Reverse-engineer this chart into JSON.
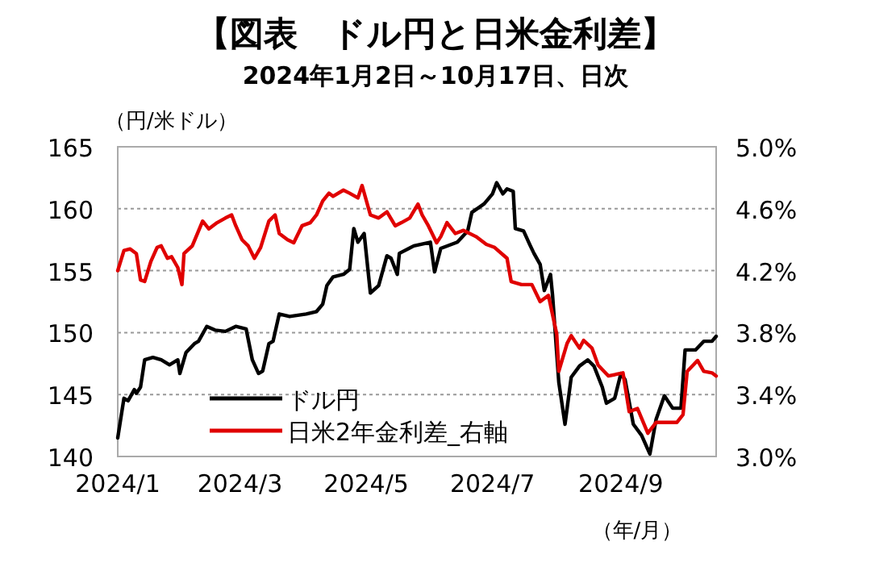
{
  "chart_data": {
    "type": "line",
    "title": "【図表　ドル円と日米金利差】",
    "subtitle": "2024年1月2日～10月17日、日次",
    "ylabel": "（円/米ドル）",
    "xlabel": "（年/月）",
    "xlim": [
      "2024-01-02",
      "2024-10-17"
    ],
    "xticks": [
      {
        "value": "2024-01-02",
        "label": "2024/1"
      },
      {
        "value": "2024-03-01",
        "label": "2024/3"
      },
      {
        "value": "2024-05-01",
        "label": "2024/5"
      },
      {
        "value": "2024-07-01",
        "label": "2024/7"
      },
      {
        "value": "2024-09-01",
        "label": "2024/9"
      }
    ],
    "ylim": [
      140,
      165
    ],
    "yticks": [
      140,
      145,
      150,
      155,
      160,
      165
    ],
    "y2lim": [
      3.0,
      5.0
    ],
    "y2ticks": [
      {
        "value": 3.0,
        "label": "3.0%"
      },
      {
        "value": 3.4,
        "label": "3.4%"
      },
      {
        "value": 3.8,
        "label": "3.8%"
      },
      {
        "value": 4.2,
        "label": "4.2%"
      },
      {
        "value": 4.6,
        "label": "4.6%"
      },
      {
        "value": 5.0,
        "label": "5.0%"
      }
    ],
    "grid": "y",
    "legend": "bottom",
    "line_style": "solid",
    "series": [
      {
        "name": "ドル円",
        "color": "#000000",
        "x": [
          "2024-01-02",
          "2024-01-05",
          "2024-01-07",
          "2024-01-10",
          "2024-01-11",
          "2024-01-13",
          "2024-01-15",
          "2024-01-19",
          "2024-01-23",
          "2024-01-27",
          "2024-01-31",
          "2024-02-01",
          "2024-02-04",
          "2024-02-08",
          "2024-02-10",
          "2024-02-14",
          "2024-02-18",
          "2024-02-23",
          "2024-02-28",
          "2024-03-04",
          "2024-03-07",
          "2024-03-10",
          "2024-03-12",
          "2024-03-15",
          "2024-03-17",
          "2024-03-20",
          "2024-03-25",
          "2024-04-02",
          "2024-04-07",
          "2024-04-10",
          "2024-04-12",
          "2024-04-15",
          "2024-04-20",
          "2024-04-23",
          "2024-04-25",
          "2024-04-27",
          "2024-04-30",
          "2024-05-03",
          "2024-05-07",
          "2024-05-11",
          "2024-05-13",
          "2024-05-16",
          "2024-05-17",
          "2024-05-24",
          "2024-06-01",
          "2024-06-03",
          "2024-06-06",
          "2024-06-14",
          "2024-06-19",
          "2024-06-21",
          "2024-06-27",
          "2024-07-01",
          "2024-07-03",
          "2024-07-06",
          "2024-07-08",
          "2024-07-11",
          "2024-07-12",
          "2024-07-16",
          "2024-07-19",
          "2024-07-21",
          "2024-07-24",
          "2024-07-26",
          "2024-07-29",
          "2024-07-30",
          "2024-08-02",
          "2024-08-05",
          "2024-08-08",
          "2024-08-12",
          "2024-08-16",
          "2024-08-19",
          "2024-08-23",
          "2024-08-25",
          "2024-08-29",
          "2024-09-01",
          "2024-09-03",
          "2024-09-07",
          "2024-09-11",
          "2024-09-15",
          "2024-09-18",
          "2024-09-22",
          "2024-09-26",
          "2024-09-30",
          "2024-10-02",
          "2024-10-07",
          "2024-10-11",
          "2024-10-15",
          "2024-10-17"
        ],
        "values": [
          141.5,
          144.7,
          144.5,
          145.4,
          145.1,
          145.6,
          147.8,
          148.0,
          147.8,
          147.4,
          147.8,
          146.7,
          148.4,
          149.1,
          149.3,
          150.5,
          150.2,
          150.1,
          150.5,
          150.3,
          147.8,
          146.7,
          146.9,
          149.1,
          149.3,
          151.5,
          151.3,
          151.5,
          151.7,
          152.3,
          153.8,
          154.5,
          154.7,
          155.1,
          158.4,
          157.3,
          158.0,
          153.2,
          153.8,
          156.2,
          156.0,
          154.7,
          156.4,
          157.0,
          157.3,
          154.9,
          156.8,
          157.3,
          158.2,
          159.7,
          160.4,
          161.2,
          162.1,
          161.2,
          161.6,
          161.4,
          158.4,
          158.2,
          157.1,
          156.4,
          155.5,
          153.4,
          154.7,
          153.0,
          146.0,
          142.6,
          146.4,
          147.3,
          147.8,
          147.3,
          145.6,
          144.3,
          144.7,
          146.7,
          146.2,
          142.6,
          141.7,
          140.2,
          143.0,
          144.9,
          143.9,
          143.9,
          148.6,
          148.6,
          149.3,
          149.3,
          149.7
        ]
      },
      {
        "name": "日米2年金利差_右軸",
        "color": "#e00000",
        "axis": "y2",
        "x": [
          "2024-01-02",
          "2024-01-05",
          "2024-01-08",
          "2024-01-11",
          "2024-01-13",
          "2024-01-15",
          "2024-01-18",
          "2024-01-21",
          "2024-01-23",
          "2024-01-26",
          "2024-01-28",
          "2024-01-31",
          "2024-02-02",
          "2024-02-03",
          "2024-02-07",
          "2024-02-12",
          "2024-02-15",
          "2024-02-19",
          "2024-02-23",
          "2024-02-26",
          "2024-02-28",
          "2024-03-02",
          "2024-03-05",
          "2024-03-08",
          "2024-03-11",
          "2024-03-15",
          "2024-03-18",
          "2024-03-20",
          "2024-03-24",
          "2024-03-27",
          "2024-03-31",
          "2024-04-04",
          "2024-04-07",
          "2024-04-10",
          "2024-04-13",
          "2024-04-15",
          "2024-04-20",
          "2024-04-23",
          "2024-04-27",
          "2024-04-29",
          "2024-05-03",
          "2024-05-07",
          "2024-05-11",
          "2024-05-15",
          "2024-05-18",
          "2024-05-22",
          "2024-05-26",
          "2024-05-28",
          "2024-05-31",
          "2024-06-04",
          "2024-06-06",
          "2024-06-09",
          "2024-06-13",
          "2024-06-17",
          "2024-06-23",
          "2024-06-28",
          "2024-07-02",
          "2024-07-08",
          "2024-07-10",
          "2024-07-15",
          "2024-07-20",
          "2024-07-24",
          "2024-07-28",
          "2024-08-01",
          "2024-08-02",
          "2024-08-06",
          "2024-08-08",
          "2024-08-12",
          "2024-08-14",
          "2024-08-18",
          "2024-08-21",
          "2024-08-26",
          "2024-09-02",
          "2024-09-05",
          "2024-09-09",
          "2024-09-14",
          "2024-09-18",
          "2024-09-28",
          "2024-10-01",
          "2024-10-03",
          "2024-10-08",
          "2024-10-11",
          "2024-10-15",
          "2024-10-17"
        ],
        "values": [
          4.2,
          4.33,
          4.34,
          4.31,
          4.14,
          4.13,
          4.26,
          4.35,
          4.36,
          4.28,
          4.29,
          4.22,
          4.11,
          4.31,
          4.36,
          4.52,
          4.47,
          4.51,
          4.54,
          4.56,
          4.49,
          4.4,
          4.36,
          4.28,
          4.35,
          4.52,
          4.56,
          4.44,
          4.4,
          4.38,
          4.49,
          4.51,
          4.56,
          4.65,
          4.7,
          4.68,
          4.72,
          4.7,
          4.67,
          4.75,
          4.56,
          4.54,
          4.58,
          4.49,
          4.51,
          4.54,
          4.63,
          4.56,
          4.49,
          4.38,
          4.42,
          4.51,
          4.44,
          4.46,
          4.42,
          4.37,
          4.35,
          4.28,
          4.13,
          4.11,
          4.11,
          4.0,
          4.04,
          3.79,
          3.55,
          3.73,
          3.78,
          3.7,
          3.75,
          3.7,
          3.59,
          3.52,
          3.54,
          3.29,
          3.31,
          3.15,
          3.22,
          3.22,
          3.27,
          3.55,
          3.62,
          3.55,
          3.54,
          3.52
        ]
      }
    ]
  }
}
